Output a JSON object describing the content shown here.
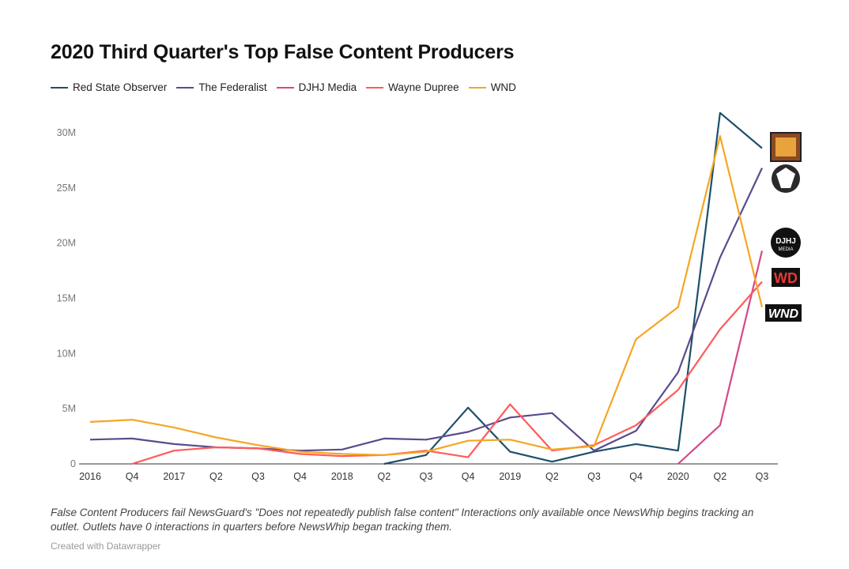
{
  "chart_data": {
    "type": "line",
    "title": "2020 Third Quarter's Top False Content Producers",
    "x": [
      "2016",
      "Q4",
      "2017",
      "Q2",
      "Q3",
      "Q4",
      "2018",
      "Q2",
      "Q3",
      "Q4",
      "2019",
      "Q2",
      "Q3",
      "Q4",
      "2020",
      "Q2",
      "Q3"
    ],
    "xlabel": "",
    "ylabel": "",
    "ylim": [
      0,
      32000000
    ],
    "yticks": [
      0,
      5000000,
      10000000,
      15000000,
      20000000,
      25000000,
      30000000
    ],
    "ytick_labels": [
      "0",
      "5M",
      "10M",
      "15M",
      "20M",
      "25M",
      "30M"
    ],
    "legend_position": "top-left",
    "grid": false,
    "series": [
      {
        "name": "Red State Observer",
        "color": "#1d4f6b",
        "values": [
          null,
          null,
          null,
          null,
          null,
          null,
          null,
          0,
          800000,
          5100000,
          1100000,
          200000,
          1100000,
          1800000,
          1200000,
          31800000,
          28600000
        ]
      },
      {
        "name": "The Federalist",
        "color": "#5a4b8c",
        "values": [
          2200000,
          2300000,
          1800000,
          1500000,
          1400000,
          1200000,
          1300000,
          2300000,
          2200000,
          2900000,
          4200000,
          4600000,
          1200000,
          3000000,
          8300000,
          18700000,
          26800000
        ]
      },
      {
        "name": "DJHJ Media",
        "color": "#d6478a",
        "values": [
          null,
          null,
          null,
          null,
          null,
          null,
          null,
          null,
          null,
          null,
          null,
          null,
          null,
          null,
          0,
          3500000,
          19300000
        ]
      },
      {
        "name": "Wayne Dupree",
        "color": "#ff5b5b",
        "values": [
          null,
          0,
          1200000,
          1500000,
          1400000,
          900000,
          700000,
          800000,
          1200000,
          600000,
          5400000,
          1200000,
          1700000,
          3500000,
          6700000,
          12200000,
          16500000
        ]
      },
      {
        "name": "WND",
        "color": "#f5a623",
        "values": [
          3800000,
          4000000,
          3300000,
          2400000,
          1700000,
          1100000,
          900000,
          800000,
          1100000,
          2100000,
          2200000,
          1300000,
          1600000,
          11300000,
          14200000,
          29700000,
          14200000
        ]
      }
    ],
    "outlet_logos": [
      {
        "series": "Red State Observer",
        "text": ""
      },
      {
        "series": "The Federalist",
        "text": ""
      },
      {
        "series": "DJHJ Media",
        "text": "DJHJ MEDIA"
      },
      {
        "series": "Wayne Dupree",
        "text": "WD"
      },
      {
        "series": "WND",
        "text": "WND"
      }
    ],
    "footnote": "False Content Producers fail NewsGuard's \"Does not repeatedly publish false content\" Interactions only available once NewsWhip begins tracking an outlet. Outlets have 0 interactions in quarters before NewsWhip began tracking them.",
    "credit": "Created with Datawrapper"
  }
}
